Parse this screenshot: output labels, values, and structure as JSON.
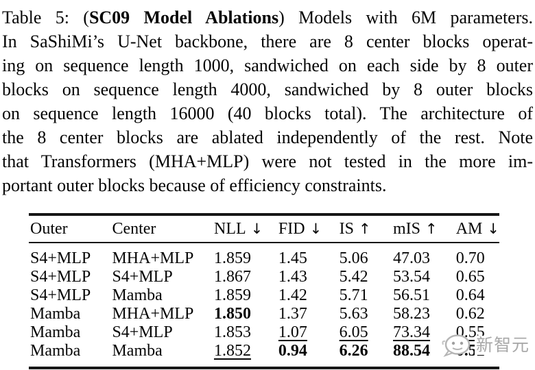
{
  "caption": {
    "lines": [
      {
        "justify": true,
        "segments": [
          {
            "text": "Table 5: (",
            "bold": false
          },
          {
            "text": "SC09 Model Ablations",
            "bold": true
          },
          {
            "text": ") Models with 6M parameters.",
            "bold": false
          }
        ]
      },
      {
        "justify": true,
        "segments": [
          {
            "text": "In SaShiMi’s U-Net backbone, there are 8 center blocks operat-",
            "bold": false
          }
        ]
      },
      {
        "justify": true,
        "segments": [
          {
            "text": "ing on sequence length 1000, sandwiched on each side by 8 outer",
            "bold": false
          }
        ]
      },
      {
        "justify": true,
        "segments": [
          {
            "text": "blocks on sequence length 4000, sandwiched by 8 outer blocks",
            "bold": false
          }
        ]
      },
      {
        "justify": true,
        "segments": [
          {
            "text": "on sequence length 16000 (40 blocks total). The architecture of",
            "bold": false
          }
        ]
      },
      {
        "justify": true,
        "segments": [
          {
            "text": "the 8 center blocks are ablated independently of the rest. Note",
            "bold": false
          }
        ]
      },
      {
        "justify": true,
        "segments": [
          {
            "text": "that Transformers (MHA+MLP) were not tested in the more im-",
            "bold": false
          }
        ]
      },
      {
        "justify": false,
        "segments": [
          {
            "text": "portant outer blocks because of efficiency constraints.",
            "bold": false
          }
        ]
      }
    ]
  },
  "table": {
    "headers": [
      {
        "label": "Outer",
        "arrow": ""
      },
      {
        "label": "Center",
        "arrow": ""
      },
      {
        "label": "NLL",
        "arrow": "↓"
      },
      {
        "label": "FID",
        "arrow": "↓"
      },
      {
        "label": "IS",
        "arrow": "↑"
      },
      {
        "label": "mIS",
        "arrow": "↑"
      },
      {
        "label": "AM",
        "arrow": "↓"
      }
    ],
    "rows": [
      {
        "cells": [
          {
            "text": "S4+MLP",
            "emphasis": null
          },
          {
            "text": "MHA+MLP",
            "emphasis": null
          },
          {
            "text": "1.859",
            "emphasis": null
          },
          {
            "text": "1.45",
            "emphasis": null
          },
          {
            "text": "5.06",
            "emphasis": null
          },
          {
            "text": "47.03",
            "emphasis": null
          },
          {
            "text": "0.70",
            "emphasis": null
          }
        ]
      },
      {
        "cells": [
          {
            "text": "S4+MLP",
            "emphasis": null
          },
          {
            "text": "S4+MLP",
            "emphasis": null
          },
          {
            "text": "1.867",
            "emphasis": null
          },
          {
            "text": "1.43",
            "emphasis": null
          },
          {
            "text": "5.42",
            "emphasis": null
          },
          {
            "text": "53.54",
            "emphasis": null
          },
          {
            "text": "0.65",
            "emphasis": null
          }
        ]
      },
      {
        "cells": [
          {
            "text": "S4+MLP",
            "emphasis": null
          },
          {
            "text": "Mamba",
            "emphasis": null
          },
          {
            "text": "1.859",
            "emphasis": null
          },
          {
            "text": "1.42",
            "emphasis": null
          },
          {
            "text": "5.71",
            "emphasis": null
          },
          {
            "text": "56.51",
            "emphasis": null
          },
          {
            "text": "0.64",
            "emphasis": null
          }
        ]
      },
      {
        "cells": [
          {
            "text": "Mamba",
            "emphasis": null
          },
          {
            "text": "MHA+MLP",
            "emphasis": null
          },
          {
            "text": "1.850",
            "emphasis": "bold"
          },
          {
            "text": "1.37",
            "emphasis": null
          },
          {
            "text": "5.63",
            "emphasis": null
          },
          {
            "text": "58.23",
            "emphasis": null
          },
          {
            "text": "0.62",
            "emphasis": null
          }
        ]
      },
      {
        "cells": [
          {
            "text": "Mamba",
            "emphasis": null
          },
          {
            "text": "S4+MLP",
            "emphasis": null
          },
          {
            "text": "1.853",
            "emphasis": null
          },
          {
            "text": "1.07",
            "emphasis": "underline"
          },
          {
            "text": "6.05",
            "emphasis": "underline"
          },
          {
            "text": "73.34",
            "emphasis": "underline"
          },
          {
            "text": "0.55",
            "emphasis": "underline"
          }
        ]
      },
      {
        "cells": [
          {
            "text": "Mamba",
            "emphasis": null
          },
          {
            "text": "Mamba",
            "emphasis": null
          },
          {
            "text": "1.852",
            "emphasis": "underline"
          },
          {
            "text": "0.94",
            "emphasis": "bold"
          },
          {
            "text": "6.26",
            "emphasis": "bold"
          },
          {
            "text": "88.54",
            "emphasis": "bold"
          },
          {
            "text": "0.52",
            "emphasis": "bold"
          }
        ]
      }
    ]
  },
  "watermark": {
    "text": "新智元",
    "logo": "chat-bubble-face-icon",
    "color": "#a9a9a9"
  },
  "colors": {
    "text": "#050505",
    "rule": "#161616",
    "background": "#ffffff",
    "watermark_gray": "#a9a9a9"
  }
}
